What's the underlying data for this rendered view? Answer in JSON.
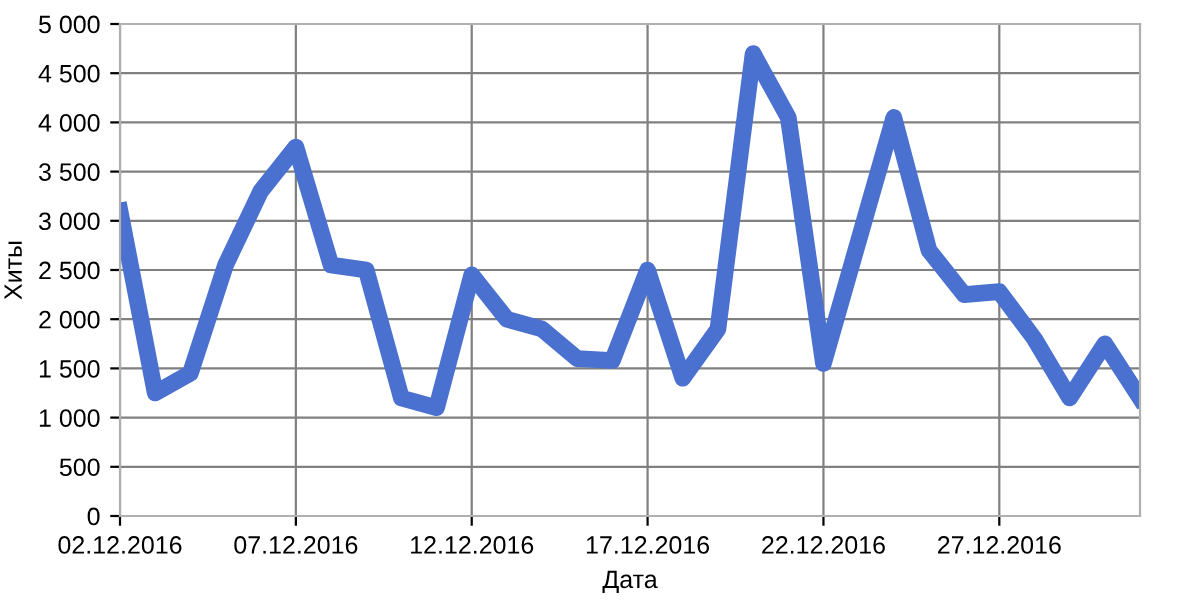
{
  "chart_data": {
    "type": "line",
    "xlabel": "Дата",
    "ylabel": "Хиты",
    "x": [
      "2016-12-02",
      "2016-12-03",
      "2016-12-04",
      "2016-12-05",
      "2016-12-06",
      "2016-12-07",
      "2016-12-08",
      "2016-12-09",
      "2016-12-10",
      "2016-12-11",
      "2016-12-12",
      "2016-12-13",
      "2016-12-14",
      "2016-12-15",
      "2016-12-16",
      "2016-12-17",
      "2016-12-18",
      "2016-12-19",
      "2016-12-20",
      "2016-12-21",
      "2016-12-22",
      "2016-12-23",
      "2016-12-24",
      "2016-12-25",
      "2016-12-26",
      "2016-12-27",
      "2016-12-28",
      "2016-12-29",
      "2016-12-30",
      "2016-12-31"
    ],
    "series": [
      {
        "color": "#4a70d0",
        "values": [
          3100,
          1250,
          1450,
          2550,
          3300,
          3750,
          2550,
          2500,
          1200,
          1100,
          2450,
          2000,
          1900,
          1600,
          1580,
          2500,
          1400,
          1900,
          4700,
          4050,
          1550,
          2800,
          4050,
          2700,
          2250,
          2280,
          1800,
          1200,
          1750,
          1200
        ]
      }
    ],
    "xlim": [
      "2016-12-02",
      "2016-12-31"
    ],
    "xticks": [
      {
        "value": "2016-12-02",
        "label": "02.12.2016"
      },
      {
        "value": "2016-12-07",
        "label": "07.12.2016"
      },
      {
        "value": "2016-12-12",
        "label": "12.12.2016"
      },
      {
        "value": "2016-12-17",
        "label": "17.12.2016"
      },
      {
        "value": "2016-12-22",
        "label": "22.12.2016"
      },
      {
        "value": "2016-12-27",
        "label": "27.12.2016"
      }
    ],
    "ylim": [
      0,
      5000
    ],
    "yticks": [
      0,
      500,
      {
        "value": 1000,
        "label": "1 000"
      },
      {
        "value": 1500,
        "label": "1 500"
      },
      {
        "value": 2000,
        "label": "2 000"
      },
      {
        "value": 2500,
        "label": "2 500"
      },
      {
        "value": 3000,
        "label": "3 000"
      },
      {
        "value": 3500,
        "label": "3 500"
      },
      {
        "value": 4000,
        "label": "4 000"
      },
      {
        "value": 4500,
        "label": "4 500"
      },
      {
        "value": 5000,
        "label": "5 000"
      }
    ],
    "grid": true,
    "marker": "none",
    "line_style": "solid"
  }
}
